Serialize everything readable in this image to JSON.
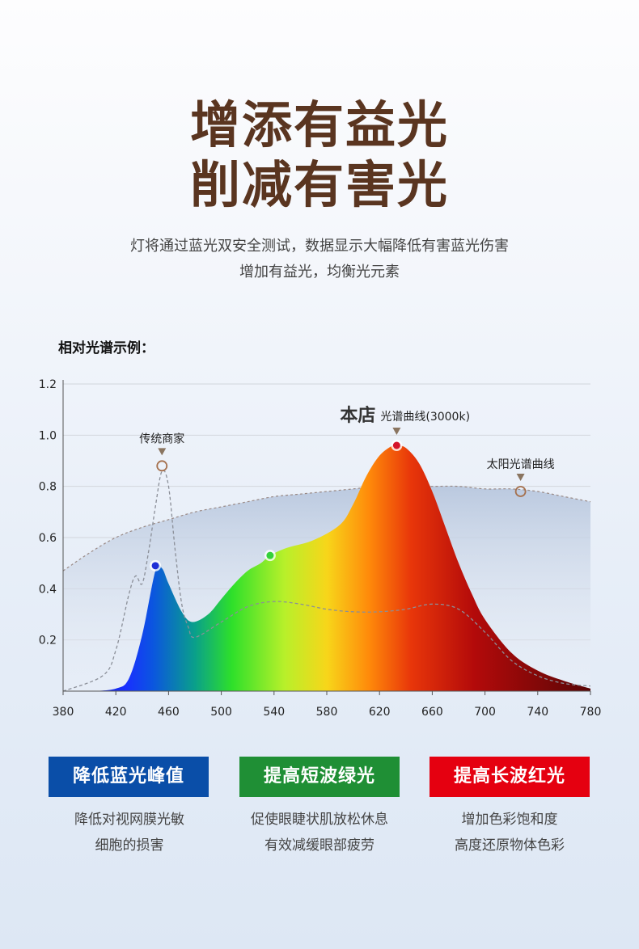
{
  "header": {
    "title_line1": "增添有益光",
    "title_line2": "削减有害光",
    "subtitle_line1": "灯将通过蓝光双安全测试，数据显示大幅降低有害蓝光伤害",
    "subtitle_line2": "增加有益光，均衡光元素"
  },
  "chart_data": {
    "type": "area",
    "title": "相对光谱示例：",
    "xlabel": "",
    "ylabel": "",
    "xlim": [
      380,
      780
    ],
    "ylim": [
      0,
      1.2
    ],
    "x_ticks": [
      380,
      420,
      460,
      500,
      540,
      580,
      620,
      660,
      700,
      740,
      780
    ],
    "y_ticks": [
      0.2,
      0.4,
      0.6,
      0.8,
      1.0,
      1.2
    ],
    "grid": true,
    "series": [
      {
        "label_main": "本店",
        "label_sub": "光谱曲线(3000k)",
        "style": "filled-spectrum",
        "x": [
          380,
          400,
          420,
          430,
          440,
          450,
          455,
          460,
          470,
          478,
          490,
          500,
          510,
          520,
          530,
          537,
          550,
          570,
          590,
          600,
          610,
          620,
          630,
          633,
          640,
          650,
          660,
          670,
          680,
          690,
          700,
          720,
          740,
          760,
          780
        ],
        "y": [
          0.0,
          0.0,
          0.01,
          0.05,
          0.22,
          0.47,
          0.48,
          0.42,
          0.31,
          0.27,
          0.3,
          0.36,
          0.42,
          0.47,
          0.5,
          0.53,
          0.56,
          0.59,
          0.65,
          0.73,
          0.84,
          0.92,
          0.96,
          0.96,
          0.95,
          0.89,
          0.78,
          0.64,
          0.5,
          0.38,
          0.28,
          0.15,
          0.08,
          0.04,
          0.01
        ],
        "markers": [
          {
            "x": 450,
            "y": 0.49,
            "color": "#1f2fd6"
          },
          {
            "x": 537,
            "y": 0.53,
            "color": "#35d13a"
          },
          {
            "x": 633,
            "y": 0.96,
            "color": "#d4142a"
          }
        ],
        "marker_at": {
          "x": 633,
          "y": 0.96
        }
      },
      {
        "label_main": "传统商家",
        "style": "dashed",
        "x": [
          380,
          410,
          420,
          430,
          435,
          440,
          445,
          450,
          455,
          460,
          465,
          470,
          475,
          480,
          500,
          520,
          540,
          560,
          580,
          600,
          620,
          640,
          660,
          680,
          700,
          720,
          740,
          760,
          780
        ],
        "y": [
          0.0,
          0.06,
          0.16,
          0.38,
          0.45,
          0.42,
          0.55,
          0.72,
          0.86,
          0.8,
          0.55,
          0.34,
          0.25,
          0.21,
          0.27,
          0.33,
          0.35,
          0.34,
          0.32,
          0.31,
          0.31,
          0.32,
          0.34,
          0.32,
          0.23,
          0.12,
          0.06,
          0.03,
          0.02
        ],
        "marker_at": {
          "x": 455,
          "y": 0.88
        }
      },
      {
        "label_main": "太阳光谱曲线",
        "style": "dashed-filled",
        "x": [
          380,
          400,
          420,
          440,
          460,
          480,
          500,
          520,
          540,
          560,
          580,
          600,
          620,
          640,
          660,
          680,
          700,
          720,
          740,
          760,
          780
        ],
        "y": [
          0.47,
          0.54,
          0.6,
          0.64,
          0.67,
          0.7,
          0.72,
          0.74,
          0.76,
          0.77,
          0.78,
          0.79,
          0.8,
          0.8,
          0.8,
          0.8,
          0.79,
          0.79,
          0.78,
          0.76,
          0.74
        ],
        "marker_at": {
          "x": 727,
          "y": 0.78
        }
      }
    ],
    "colors": {
      "marker_ring": "#a5704d",
      "marker_arrow": "#8a7560",
      "grid": "#d2d6dc",
      "axis": "#555555"
    }
  },
  "features": [
    {
      "label": "降低蓝光峰值",
      "color": "#0a4ea8",
      "desc_line1": "降低对视网膜光敏",
      "desc_line2": "细胞的损害"
    },
    {
      "label": "提高短波绿光",
      "color": "#1f8f35",
      "desc_line1": "促使眼睫状肌放松休息",
      "desc_line2": "有效减缓眼部疲劳"
    },
    {
      "label": "提高长波红光",
      "color": "#e50010",
      "desc_line1": "增加色彩饱和度",
      "desc_line2": "高度还原物体色彩"
    }
  ]
}
